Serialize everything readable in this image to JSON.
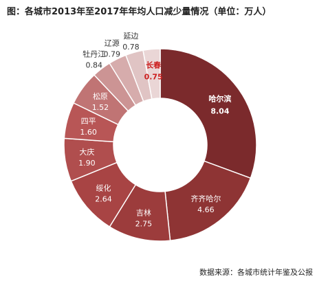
{
  "chart_data": {
    "type": "pie",
    "title": "图：各城市2013年至2017年年均人口减少量情况（单位：万人）",
    "source": "数据来源：各城市统计年鉴及公报",
    "slices": [
      {
        "name": "哈尔滨",
        "value": 8.04,
        "value_label": "8.04",
        "color": "#7b2a2c"
      },
      {
        "name": "齐齐哈尔",
        "value": 4.66,
        "value_label": "4.66",
        "color": "#8e3434"
      },
      {
        "name": "吉林",
        "value": 2.75,
        "value_label": "2.75",
        "color": "#9c3c3c"
      },
      {
        "name": "绥化",
        "value": 2.64,
        "value_label": "2.64",
        "color": "#a84444"
      },
      {
        "name": "大庆",
        "value": 1.9,
        "value_label": "1.90",
        "color": "#b04e4e"
      },
      {
        "name": "四平",
        "value": 1.6,
        "value_label": "1.60",
        "color": "#b85656"
      },
      {
        "name": "松原",
        "value": 1.52,
        "value_label": "1.52",
        "color": "#c07474"
      },
      {
        "name": "牡丹江",
        "value": 0.84,
        "value_label": "0.84",
        "color": "#cc9494"
      },
      {
        "name": "辽源",
        "value": 0.79,
        "value_label": "0.79",
        "color": "#d6acac"
      },
      {
        "name": "延边",
        "value": 0.78,
        "value_label": "0.78",
        "color": "#e0c4c4"
      },
      {
        "name": "长春",
        "value": 0.75,
        "value_label": "0.75",
        "color": "#ead6d6"
      }
    ]
  }
}
